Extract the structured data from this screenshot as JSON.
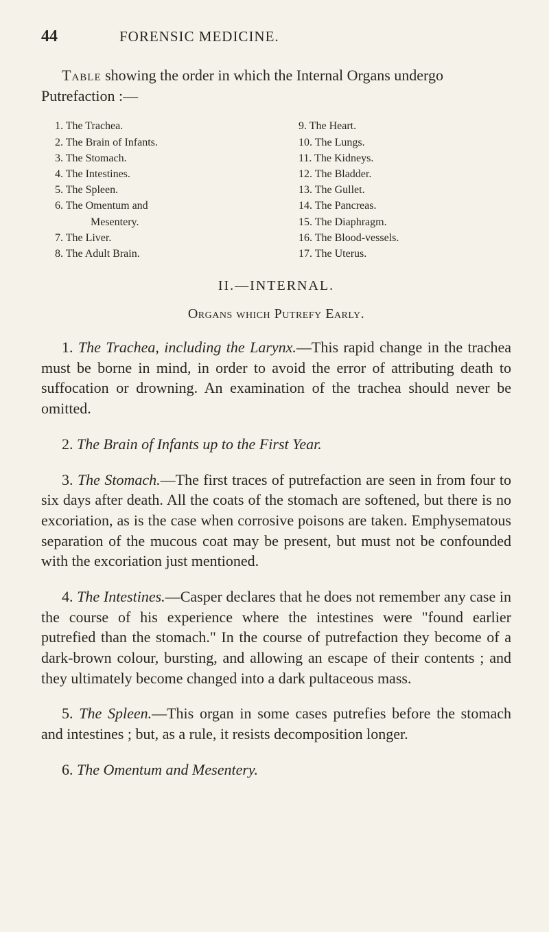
{
  "page": {
    "number": "44",
    "title": "FORENSIC MEDICINE."
  },
  "intro": "Table showing the order in which the Internal Organs undergo Putrefaction :—",
  "intro_smallcaps": "Table",
  "intro_rest": " showing the order in which the Internal Organs undergo Putrefaction :—",
  "list_left": [
    "1. The Trachea.",
    "2. The Brain of Infants.",
    "3. The Stomach.",
    "4. The Intestines.",
    "5. The Spleen.",
    "6. The Omentum and",
    "Mesentery.",
    "7. The Liver.",
    "8. The Adult Brain."
  ],
  "list_right": [
    "9. The Heart.",
    "10. The Lungs.",
    "11. The Kidneys.",
    "12. The Bladder.",
    "13. The Gullet.",
    "14. The Pancreas.",
    "15. The Diaphragm.",
    "16. The Blood-vessels.",
    "17. The Uterus."
  ],
  "section_heading": "II.—INTERNAL.",
  "subsection_heading": "Organs which Putrefy Early.",
  "paragraphs": [
    {
      "lead_num": "1. ",
      "lead_italic": "The Trachea, including the Larynx.",
      "body": "—This rapid change in the trachea must be borne in mind, in order to avoid the error of attributing death to suffocation or drowning. An examination of the trachea should never be omitted."
    },
    {
      "lead_num": "2. ",
      "lead_italic": "The Brain of Infants up to the First Year.",
      "body": ""
    },
    {
      "lead_num": "3. ",
      "lead_italic": "The Stomach.",
      "body": "—The first traces of putrefaction are seen in from four to six days after death. All the coats of the stomach are softened, but there is no excoriation, as is the case when corrosive poisons are taken. Emphysematous separation of the mucous coat may be present, but must not be confounded with the excoriation just mentioned."
    },
    {
      "lead_num": "4. ",
      "lead_italic": "The Intestines.",
      "body": "—Casper declares that he does not remember any case in the course of his experience where the intestines were \"found earlier putrefied than the stomach.\" In the course of putrefaction they become of a dark-brown colour, bursting, and allowing an escape of their contents ; and they ultimately become changed into a dark pultaceous mass."
    },
    {
      "lead_num": "5. ",
      "lead_italic": "The Spleen.",
      "body": "—This organ in some cases putrefies before the stomach and intestines ; but, as a rule, it resists decomposition longer."
    },
    {
      "lead_num": "6. ",
      "lead_italic": "The Omentum and Mesentery.",
      "body": ""
    }
  ],
  "colors": {
    "background": "#f5f2e9",
    "text": "#2a2520"
  },
  "typography": {
    "body_fontsize": 22,
    "list_fontsize": 16,
    "header_fontsize_num": 24,
    "header_fontsize_title": 21,
    "section_heading_fontsize": 20
  }
}
